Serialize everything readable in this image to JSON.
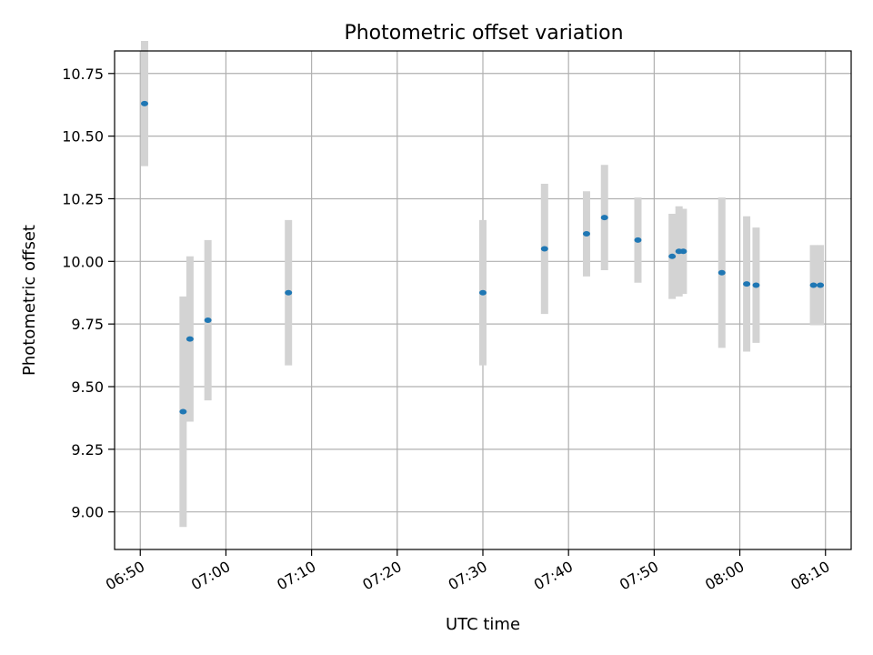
{
  "chart_data": {
    "type": "scatter",
    "title": "Photometric offset variation",
    "xlabel": "UTC time",
    "ylabel": "Photometric offset",
    "grid": true,
    "xlim": [
      "06:47",
      "08:13"
    ],
    "ylim": [
      8.85,
      10.84
    ],
    "x_ticks": [
      "06:50",
      "07:00",
      "07:10",
      "07:20",
      "07:30",
      "07:40",
      "07:50",
      "08:00",
      "08:10"
    ],
    "y_ticks": [
      "9.00",
      "9.25",
      "9.50",
      "9.75",
      "10.00",
      "10.25",
      "10.50",
      "10.75"
    ],
    "colors": {
      "marker": "#1f77b4",
      "errorbar": "#d3d3d3",
      "grid": "#b0b0b0"
    },
    "points": [
      {
        "x": "06:50:30",
        "y": 10.63,
        "err": 0.25
      },
      {
        "x": "06:55:00",
        "y": 9.4,
        "err": 0.46
      },
      {
        "x": "06:55:48",
        "y": 9.69,
        "err": 0.33
      },
      {
        "x": "06:57:54",
        "y": 9.765,
        "err": 0.32
      },
      {
        "x": "07:07:18",
        "y": 9.875,
        "err": 0.29
      },
      {
        "x": "07:30:00",
        "y": 9.875,
        "err": 0.29
      },
      {
        "x": "07:37:12",
        "y": 10.05,
        "err": 0.26
      },
      {
        "x": "07:42:06",
        "y": 10.11,
        "err": 0.17
      },
      {
        "x": "07:44:12",
        "y": 10.175,
        "err": 0.21
      },
      {
        "x": "07:48:06",
        "y": 10.085,
        "err": 0.17
      },
      {
        "x": "07:52:06",
        "y": 10.02,
        "err": 0.17
      },
      {
        "x": "07:52:54",
        "y": 10.04,
        "err": 0.18
      },
      {
        "x": "07:53:24",
        "y": 10.04,
        "err": 0.17
      },
      {
        "x": "07:57:54",
        "y": 9.955,
        "err": 0.3
      },
      {
        "x": "08:00:48",
        "y": 9.91,
        "err": 0.27
      },
      {
        "x": "08:01:54",
        "y": 9.905,
        "err": 0.23
      },
      {
        "x": "08:08:36",
        "y": 9.905,
        "err": 0.16
      },
      {
        "x": "08:09:24",
        "y": 9.905,
        "err": 0.16
      }
    ]
  }
}
